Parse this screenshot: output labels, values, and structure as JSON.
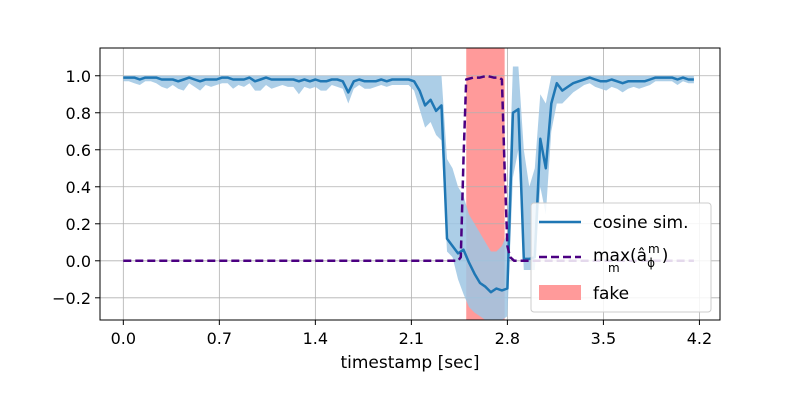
{
  "chart_data": {
    "type": "line",
    "xlabel": "timestamp [sec]",
    "ylabel": "",
    "xlim": [
      -0.17,
      4.35
    ],
    "ylim": [
      -0.32,
      1.15
    ],
    "xticks": [
      "0.0",
      "0.7",
      "1.4",
      "2.1",
      "2.8",
      "3.5",
      "4.2"
    ],
    "yticks": [
      "−0.2",
      "0.0",
      "0.2",
      "0.4",
      "0.6",
      "0.8",
      "1.0"
    ],
    "grid": true,
    "legend_position": "bottom-right",
    "colors": {
      "cosine": "#1f77b4",
      "band": "#9ec5e3",
      "max": "#4b0082",
      "fake": "#ff9a9a"
    },
    "fake_interval": [
      2.5,
      2.78
    ],
    "series": [
      {
        "name": "cosine sim.",
        "style": "solid",
        "x": [
          0.0,
          0.04,
          0.08,
          0.12,
          0.16,
          0.2,
          0.24,
          0.28,
          0.32,
          0.36,
          0.4,
          0.44,
          0.48,
          0.52,
          0.56,
          0.6,
          0.64,
          0.68,
          0.72,
          0.76,
          0.8,
          0.84,
          0.88,
          0.92,
          0.96,
          1.0,
          1.04,
          1.08,
          1.12,
          1.16,
          1.2,
          1.24,
          1.28,
          1.32,
          1.36,
          1.4,
          1.44,
          1.48,
          1.52,
          1.56,
          1.6,
          1.64,
          1.68,
          1.72,
          1.76,
          1.8,
          1.84,
          1.88,
          1.92,
          1.96,
          2.0,
          2.04,
          2.08,
          2.12,
          2.16,
          2.2,
          2.24,
          2.28,
          2.32,
          2.36,
          2.4,
          2.44,
          2.48,
          2.52,
          2.56,
          2.6,
          2.64,
          2.68,
          2.72,
          2.76,
          2.8,
          2.84,
          2.88,
          2.92,
          2.96,
          3.0,
          3.04,
          3.08,
          3.12,
          3.16,
          3.2,
          3.24,
          3.28,
          3.32,
          3.36,
          3.4,
          3.44,
          3.48,
          3.52,
          3.56,
          3.6,
          3.64,
          3.68,
          3.72,
          3.76,
          3.8,
          3.84,
          3.88,
          3.92,
          3.96,
          4.0,
          4.04,
          4.08,
          4.12,
          4.16
        ],
        "y": [
          0.99,
          0.99,
          0.99,
          0.98,
          0.99,
          0.99,
          0.99,
          0.98,
          0.98,
          0.98,
          0.97,
          0.98,
          0.99,
          0.98,
          0.97,
          0.98,
          0.98,
          0.98,
          0.99,
          0.99,
          0.98,
          0.98,
          0.98,
          0.99,
          0.97,
          0.98,
          0.99,
          0.98,
          0.98,
          0.98,
          0.98,
          0.98,
          0.97,
          0.98,
          0.97,
          0.98,
          0.97,
          0.97,
          0.98,
          0.98,
          0.97,
          0.91,
          0.97,
          0.98,
          0.97,
          0.97,
          0.97,
          0.98,
          0.97,
          0.98,
          0.98,
          0.98,
          0.98,
          0.97,
          0.92,
          0.84,
          0.87,
          0.81,
          0.84,
          0.12,
          0.08,
          0.04,
          0.06,
          -0.01,
          -0.07,
          -0.12,
          -0.14,
          -0.17,
          -0.15,
          -0.16,
          -0.15,
          0.8,
          0.82,
          0.01,
          0.01,
          0.02,
          0.66,
          0.5,
          0.85,
          0.96,
          0.92,
          0.94,
          0.96,
          0.97,
          0.98,
          0.99,
          0.98,
          0.97,
          0.97,
          0.98,
          0.97,
          0.96,
          0.97,
          0.97,
          0.97,
          0.97,
          0.98,
          0.99,
          0.99,
          0.99,
          0.99,
          0.98,
          0.99,
          0.98,
          0.98
        ]
      },
      {
        "name": "max(âϕm)",
        "style": "dashed",
        "x": [
          0.0,
          2.4,
          2.44,
          2.46,
          2.48,
          2.5,
          2.55,
          2.6,
          2.65,
          2.7,
          2.74,
          2.76,
          2.78,
          2.8,
          2.82,
          2.85,
          4.16
        ],
        "y": [
          0.0,
          0.0,
          0.0,
          0.02,
          0.55,
          0.98,
          0.99,
          0.99,
          1.0,
          0.99,
          0.99,
          0.98,
          0.5,
          0.08,
          0.02,
          0.0,
          0.0
        ]
      }
    ],
    "band": {
      "name": "cosine sim. spread",
      "x": [
        0.0,
        0.04,
        0.08,
        0.12,
        0.16,
        0.2,
        0.24,
        0.28,
        0.32,
        0.36,
        0.4,
        0.44,
        0.48,
        0.52,
        0.56,
        0.6,
        0.64,
        0.68,
        0.72,
        0.76,
        0.8,
        0.84,
        0.88,
        0.92,
        0.96,
        1.0,
        1.04,
        1.08,
        1.12,
        1.16,
        1.2,
        1.24,
        1.28,
        1.32,
        1.36,
        1.4,
        1.44,
        1.48,
        1.52,
        1.56,
        1.6,
        1.64,
        1.68,
        1.72,
        1.76,
        1.8,
        1.84,
        1.88,
        1.92,
        1.96,
        2.0,
        2.04,
        2.08,
        2.12,
        2.16,
        2.2,
        2.24,
        2.28,
        2.32,
        2.36,
        2.4,
        2.44,
        2.48,
        2.52,
        2.56,
        2.6,
        2.64,
        2.68,
        2.72,
        2.76,
        2.8,
        2.84,
        2.88,
        2.92,
        2.96,
        3.0,
        3.04,
        3.08,
        3.12,
        3.16,
        3.2,
        3.24,
        3.28,
        3.32,
        3.36,
        3.4,
        3.44,
        3.48,
        3.52,
        3.56,
        3.6,
        3.64,
        3.68,
        3.72,
        3.76,
        3.8,
        3.84,
        3.88,
        3.92,
        3.96,
        4.0,
        4.04,
        4.08,
        4.12,
        4.16
      ],
      "upper": [
        1.0,
        1.0,
        1.0,
        1.0,
        1.0,
        1.0,
        1.0,
        1.0,
        1.0,
        1.0,
        1.0,
        1.0,
        1.0,
        1.0,
        1.0,
        1.0,
        1.0,
        1.0,
        1.0,
        1.0,
        1.0,
        1.0,
        1.0,
        1.0,
        1.0,
        1.0,
        1.0,
        1.0,
        1.0,
        1.0,
        1.0,
        1.0,
        1.0,
        1.0,
        1.0,
        1.0,
        1.0,
        1.0,
        1.0,
        1.0,
        1.0,
        1.0,
        1.0,
        1.0,
        1.0,
        1.0,
        1.0,
        1.0,
        1.0,
        1.0,
        1.0,
        1.0,
        1.0,
        1.0,
        1.0,
        1.0,
        1.0,
        1.0,
        1.0,
        0.55,
        0.5,
        0.4,
        0.35,
        0.25,
        0.2,
        0.15,
        0.1,
        0.05,
        0.05,
        0.08,
        0.15,
        1.05,
        1.05,
        0.6,
        0.4,
        0.5,
        0.9,
        0.85,
        1.0,
        1.0,
        1.0,
        1.0,
        1.0,
        1.0,
        1.0,
        1.0,
        1.0,
        1.0,
        1.0,
        1.0,
        1.0,
        1.0,
        1.0,
        1.0,
        1.0,
        1.0,
        1.0,
        1.0,
        1.0,
        1.0,
        1.0,
        1.0,
        1.0,
        1.0,
        1.0
      ],
      "lower": [
        0.97,
        0.97,
        0.96,
        0.95,
        0.97,
        0.97,
        0.96,
        0.94,
        0.93,
        0.95,
        0.93,
        0.92,
        0.96,
        0.94,
        0.92,
        0.95,
        0.94,
        0.95,
        0.96,
        0.96,
        0.93,
        0.95,
        0.94,
        0.96,
        0.92,
        0.92,
        0.95,
        0.93,
        0.94,
        0.95,
        0.94,
        0.94,
        0.9,
        0.94,
        0.93,
        0.94,
        0.92,
        0.92,
        0.95,
        0.94,
        0.93,
        0.85,
        0.93,
        0.95,
        0.93,
        0.93,
        0.94,
        0.95,
        0.94,
        0.95,
        0.95,
        0.95,
        0.95,
        0.92,
        0.82,
        0.72,
        0.75,
        0.68,
        0.65,
        0.05,
        0.02,
        -0.1,
        -0.18,
        -0.25,
        -0.28,
        -0.3,
        -0.32,
        -0.32,
        -0.32,
        -0.32,
        -0.3,
        0.45,
        0.6,
        -0.05,
        -0.05,
        -0.05,
        0.4,
        0.25,
        0.7,
        0.85,
        0.85,
        0.88,
        0.91,
        0.93,
        0.95,
        0.96,
        0.94,
        0.93,
        0.92,
        0.94,
        0.93,
        0.91,
        0.93,
        0.94,
        0.93,
        0.94,
        0.95,
        0.97,
        0.97,
        0.97,
        0.97,
        0.95,
        0.97,
        0.96,
        0.96
      ]
    },
    "legend": [
      {
        "label": "cosine sim.",
        "kind": "line"
      },
      {
        "label_prefix": "max",
        "label_sub": "m",
        "label_math": "(â",
        "label_math_sub": "ϕ",
        "label_math_sup": "m",
        "label_suffix": ")",
        "kind": "dashed"
      },
      {
        "label": "fake",
        "kind": "patch"
      }
    ]
  }
}
